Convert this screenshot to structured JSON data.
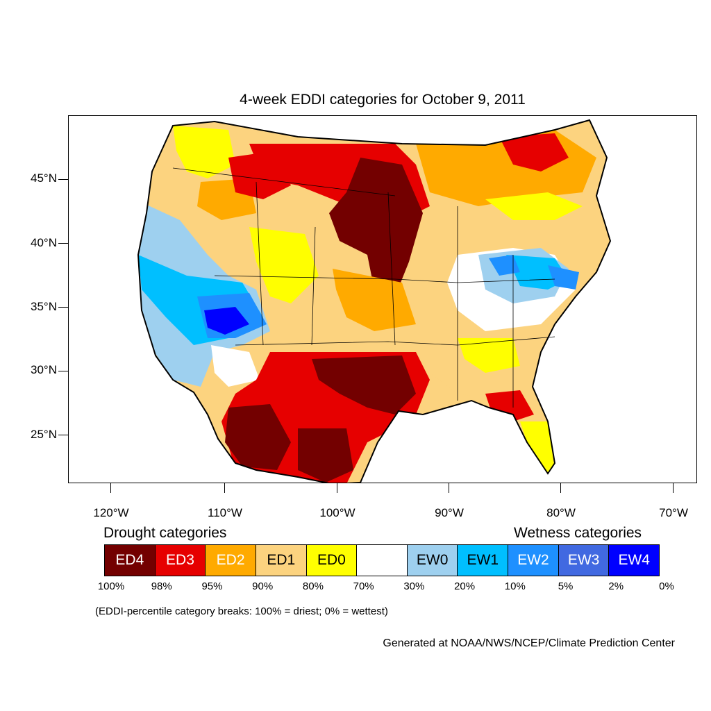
{
  "title": "4-week EDDI categories for October 9, 2011",
  "latitude_labels": [
    "45°N",
    "40°N",
    "35°N",
    "30°N",
    "25°N"
  ],
  "longitude_labels": [
    "120°W",
    "110°W",
    "100°W",
    "90°W",
    "80°W",
    "70°W"
  ],
  "legend": {
    "drought_heading": "Drought categories",
    "wetness_heading": "Wetness categories",
    "categories": [
      {
        "label": "ED4",
        "color": "#730000",
        "text_color": "#ffffff"
      },
      {
        "label": "ED3",
        "color": "#e60000",
        "text_color": "#ffffff"
      },
      {
        "label": "ED2",
        "color": "#ffaa00",
        "text_color": "#ffffff"
      },
      {
        "label": "ED1",
        "color": "#fcd37f",
        "text_color": "#000000"
      },
      {
        "label": "ED0",
        "color": "#ffff00",
        "text_color": "#000000"
      },
      {
        "label": "",
        "color": "#ffffff",
        "text_color": "#000000"
      },
      {
        "label": "EW0",
        "color": "#9ed0ef",
        "text_color": "#000000"
      },
      {
        "label": "EW1",
        "color": "#00bfff",
        "text_color": "#000000"
      },
      {
        "label": "EW2",
        "color": "#1e90ff",
        "text_color": "#ffffff"
      },
      {
        "label": "EW3",
        "color": "#4169e1",
        "text_color": "#ffffff"
      },
      {
        "label": "EW4",
        "color": "#0000ff",
        "text_color": "#ffffff"
      }
    ],
    "percentile_breaks": [
      "100%",
      "98%",
      "95%",
      "90%",
      "80%",
      "70%",
      "30%",
      "20%",
      "10%",
      "5%",
      "2%",
      "0%"
    ]
  },
  "note": "(EDDI-percentile category breaks: 100% = driest; 0% = wettest)",
  "credit": "Generated at NOAA/NWS/NCEP/Climate Prediction Center"
}
